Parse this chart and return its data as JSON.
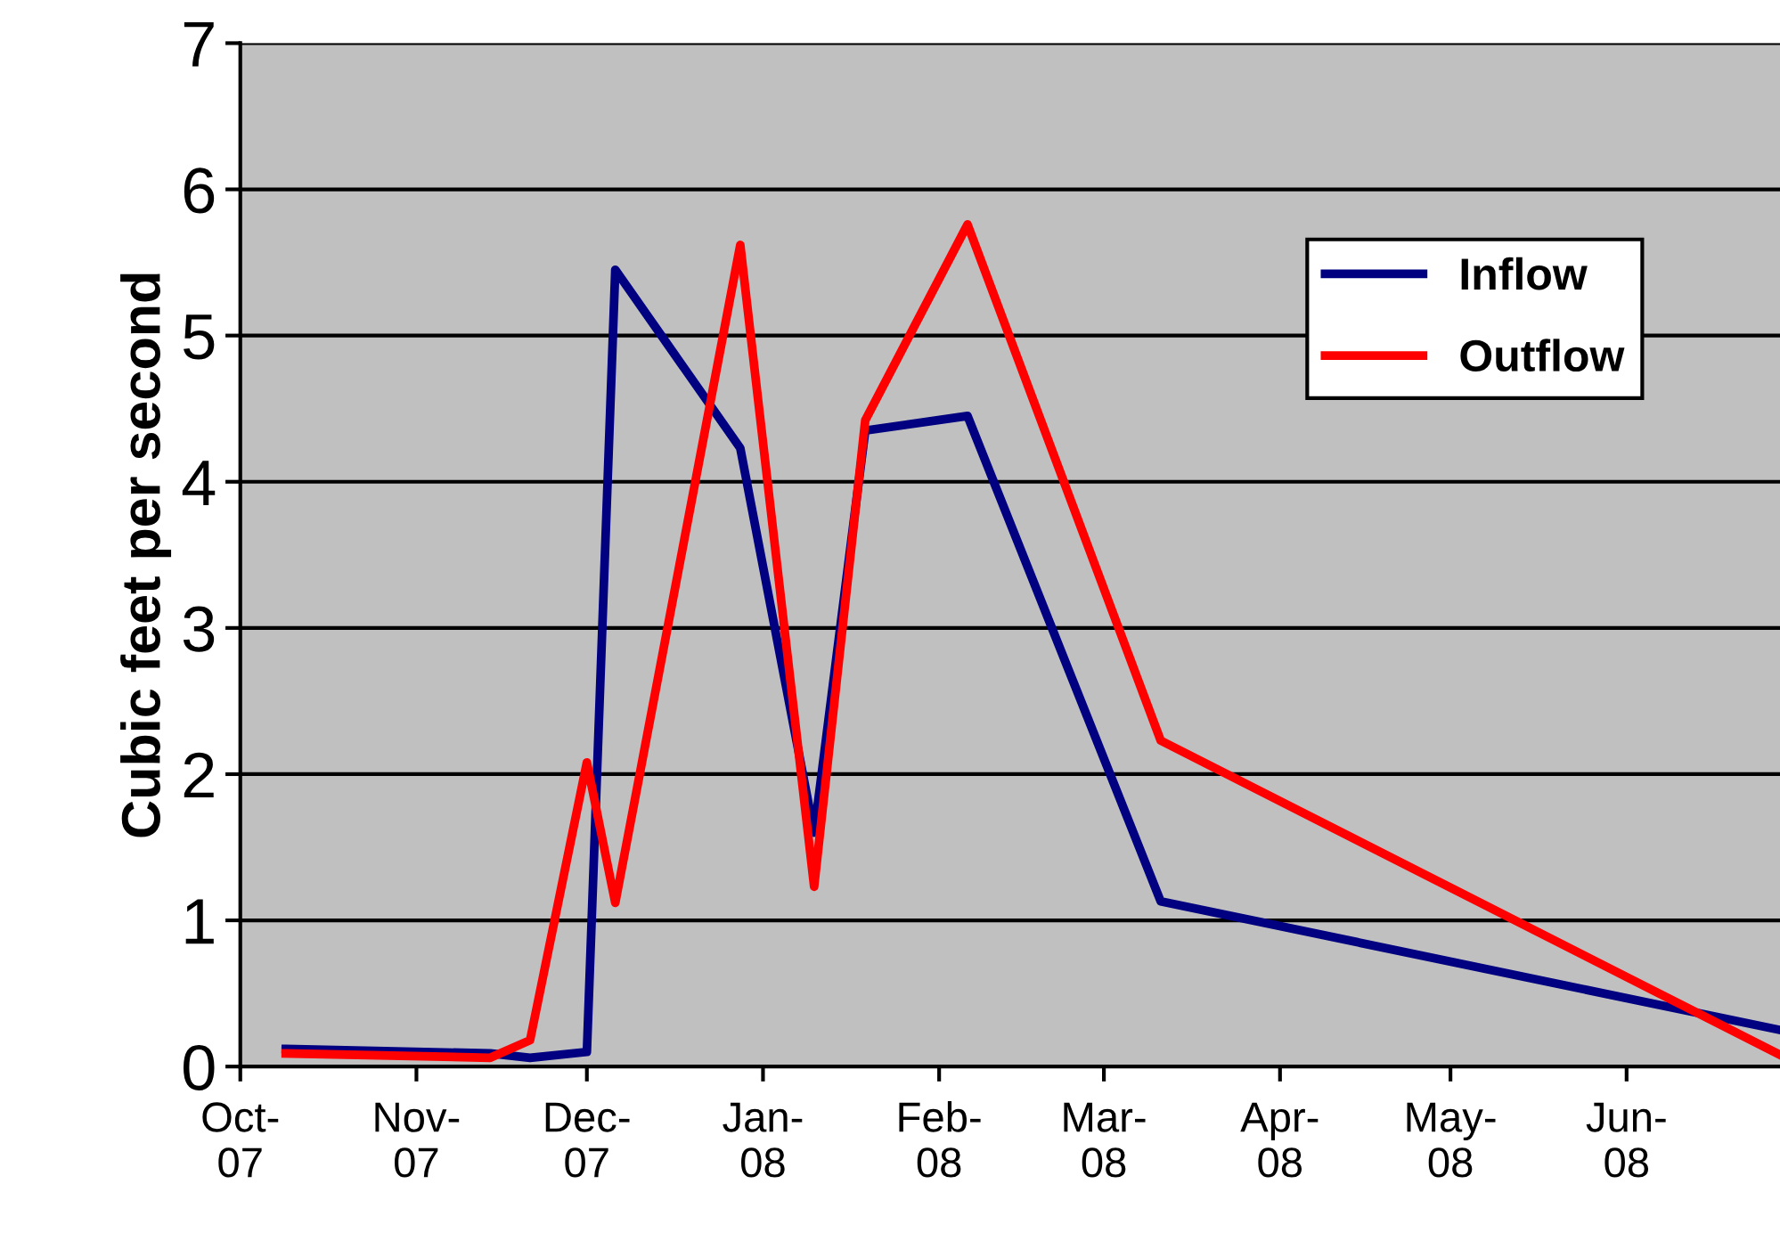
{
  "chart_data": {
    "type": "line",
    "ylabel": "Cubic feet per second",
    "x": [
      "2007-10-09",
      "2007-11-14",
      "2007-11-21",
      "2007-12-01",
      "2007-12-06",
      "2007-12-28",
      "2008-01-10",
      "2008-01-19",
      "2008-02-06",
      "2008-03-11",
      "2008-06-28"
    ],
    "series": [
      {
        "name": "Inflow",
        "color": "#000080",
        "values": [
          0.12,
          0.09,
          0.06,
          0.1,
          5.45,
          4.23,
          1.6,
          4.35,
          4.45,
          1.13,
          0.25
        ]
      },
      {
        "name": "Outflow",
        "color": "#ff0000",
        "values": [
          0.09,
          0.06,
          0.18,
          2.08,
          1.12,
          5.62,
          1.23,
          4.42,
          5.76,
          2.23,
          0.08
        ]
      }
    ],
    "xlim": [
      "2007-10-01",
      "2008-06-28"
    ],
    "xticks": [
      {
        "value": "2007-10-01",
        "label": "Oct-\n07"
      },
      {
        "value": "2007-11-01",
        "label": "Nov-\n07"
      },
      {
        "value": "2007-12-01",
        "label": "Dec-\n07"
      },
      {
        "value": "2008-01-01",
        "label": "Jan-\n08"
      },
      {
        "value": "2008-02-01",
        "label": "Feb-\n08"
      },
      {
        "value": "2008-03-01",
        "label": "Mar-\n08"
      },
      {
        "value": "2008-04-01",
        "label": "Apr-\n08"
      },
      {
        "value": "2008-05-01",
        "label": "May-\n08"
      },
      {
        "value": "2008-06-01",
        "label": "Jun-\n08"
      }
    ],
    "ylim": [
      0,
      7
    ],
    "yticks": [
      0,
      1,
      2,
      3,
      4,
      5,
      6,
      7
    ],
    "grid": "y",
    "legend": "top right",
    "marker": "none",
    "line_style": "solid"
  }
}
